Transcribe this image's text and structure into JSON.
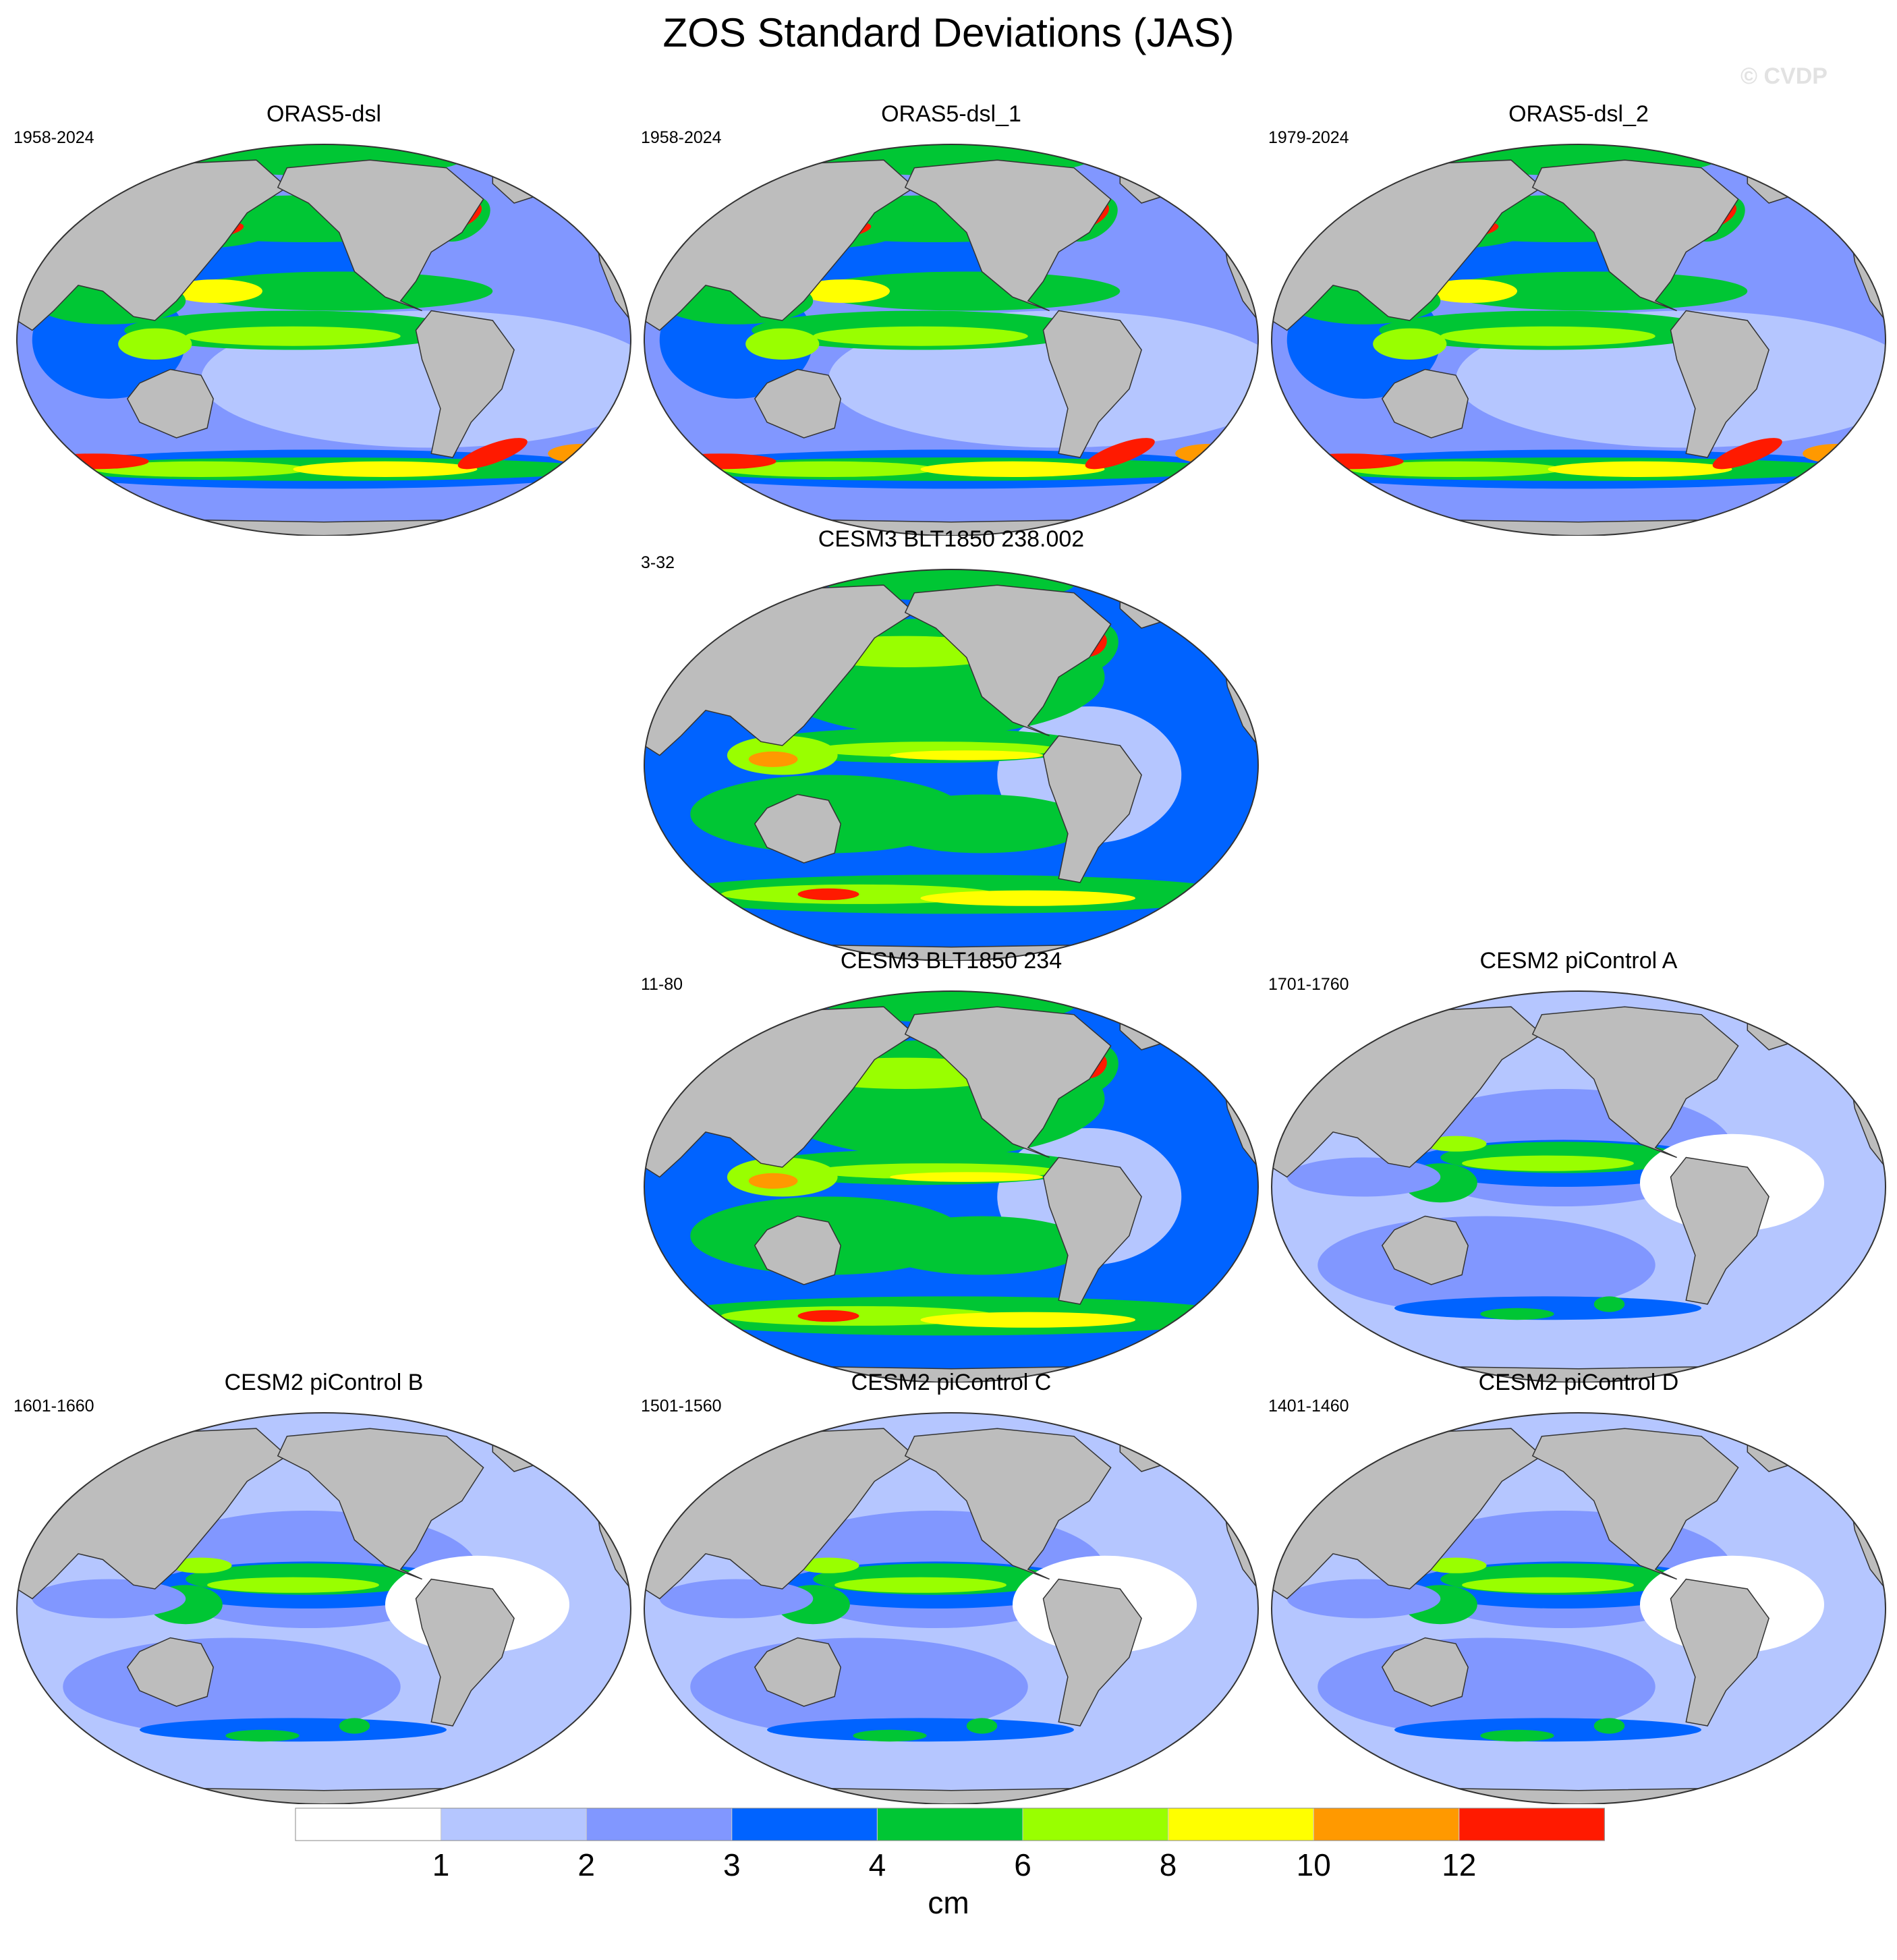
{
  "title": "ZOS Standard Deviations (JAS)",
  "watermark": "© CVDP",
  "panels": [
    {
      "title": "ORAS5-dsl",
      "period": "1958-2024",
      "pattern": "reanalysis"
    },
    {
      "title": "ORAS5-dsl_1",
      "period": "1958-2024",
      "pattern": "reanalysis"
    },
    {
      "title": "ORAS5-dsl_2",
      "period": "1979-2024",
      "pattern": "reanalysis"
    },
    {
      "title": "CESM3 BLT1850 238.002",
      "period": "3-32",
      "pattern": "cesm3"
    },
    {
      "title": "CESM3 BLT1850 234",
      "period": "11-80",
      "pattern": "cesm3"
    },
    {
      "title": "CESM2 piControl A",
      "period": "1701-1760",
      "pattern": "cesm2"
    },
    {
      "title": "CESM2 piControl B",
      "period": "1601-1660",
      "pattern": "cesm2"
    },
    {
      "title": "CESM2 piControl C",
      "period": "1501-1560",
      "pattern": "cesm2"
    },
    {
      "title": "CESM2 piControl D",
      "period": "1401-1460",
      "pattern": "cesm2"
    }
  ],
  "colorbar": {
    "unit": "cm",
    "tick_labels": [
      "1",
      "2",
      "3",
      "4",
      "6",
      "8",
      "10",
      "12"
    ],
    "colors": [
      "#ffffff",
      "#b5c6ff",
      "#8197ff",
      "#0063ff",
      "#00c634",
      "#99ff00",
      "#ffff00",
      "#ff9900",
      "#ff1a00"
    ]
  },
  "colors": {
    "land": "#bdbdbd",
    "outline": "#333333"
  }
}
